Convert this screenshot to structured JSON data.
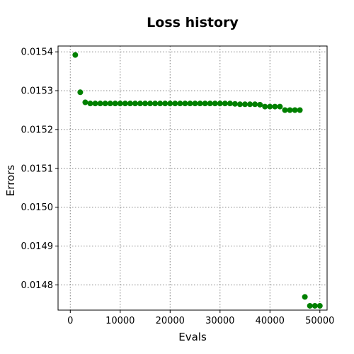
{
  "chart_data": {
    "type": "scatter",
    "title": "Loss history",
    "xlabel": "Evals",
    "ylabel": "Errors",
    "xlim": [
      -2450,
      51450
    ],
    "ylim": [
      0.014735,
      0.015415
    ],
    "xticks": [
      0,
      10000,
      20000,
      30000,
      40000,
      50000
    ],
    "yticks": [
      0.0148,
      0.0149,
      0.015,
      0.0151,
      0.0152,
      0.0153,
      0.0154
    ],
    "grid": true,
    "marker_color": "#008000",
    "grid_color": "#808080",
    "x": [
      1000,
      2000,
      3000,
      4000,
      5000,
      6000,
      7000,
      8000,
      9000,
      10000,
      11000,
      12000,
      13000,
      14000,
      15000,
      16000,
      17000,
      18000,
      19000,
      20000,
      21000,
      22000,
      23000,
      24000,
      25000,
      26000,
      27000,
      28000,
      29000,
      30000,
      31000,
      32000,
      33000,
      34000,
      35000,
      36000,
      37000,
      38000,
      39000,
      40000,
      41000,
      42000,
      43000,
      44000,
      45000,
      46000,
      47000,
      48000,
      49000,
      50000
    ],
    "y": [
      0.015392,
      0.015296,
      0.01527,
      0.015267,
      0.015267,
      0.015267,
      0.015267,
      0.015267,
      0.015267,
      0.015267,
      0.015267,
      0.015267,
      0.015267,
      0.015267,
      0.015267,
      0.015267,
      0.015267,
      0.015267,
      0.015267,
      0.015267,
      0.015267,
      0.015267,
      0.015267,
      0.015267,
      0.015267,
      0.015267,
      0.015267,
      0.015267,
      0.015267,
      0.015267,
      0.015267,
      0.015267,
      0.015266,
      0.015265,
      0.015265,
      0.015265,
      0.015265,
      0.015264,
      0.015259,
      0.015259,
      0.015259,
      0.015259,
      0.01525,
      0.01525,
      0.01525,
      0.01525,
      0.014769,
      0.014746,
      0.014746,
      0.014746
    ]
  }
}
